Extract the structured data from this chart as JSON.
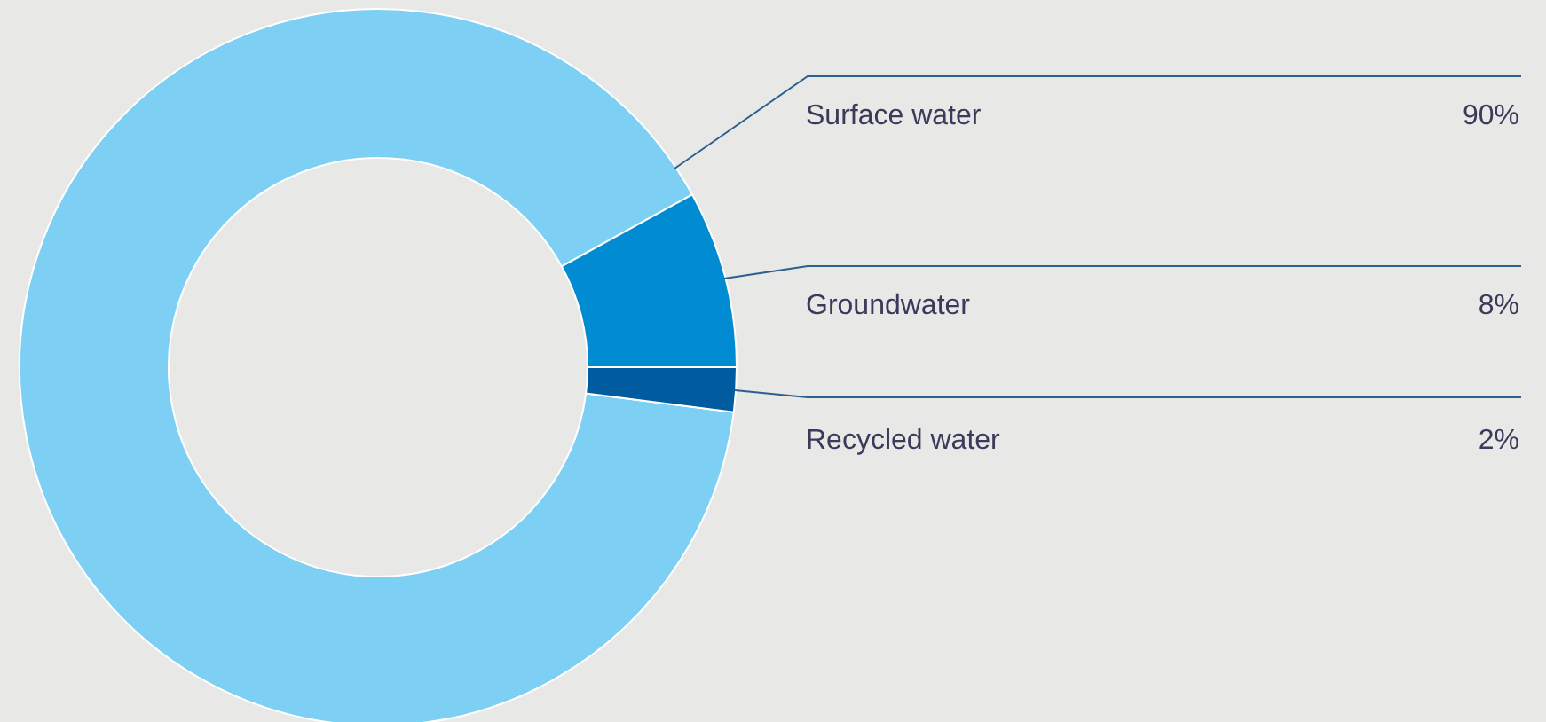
{
  "chart_data": {
    "type": "donut",
    "categories": [
      "Surface water",
      "Groundwater",
      "Recycled water"
    ],
    "values": [
      90,
      8,
      2
    ],
    "colors": [
      "#7dcff4",
      "#008bd2",
      "#005b9f"
    ],
    "value_labels": [
      "90%",
      "8%",
      "2%"
    ]
  }
}
